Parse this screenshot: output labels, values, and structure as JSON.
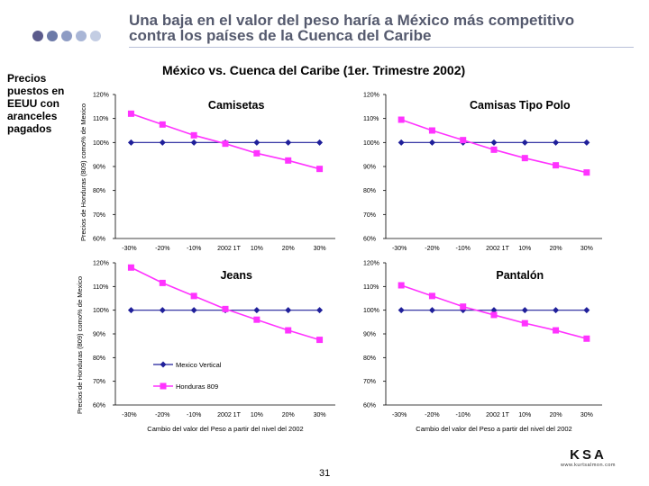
{
  "header": {
    "title_line1": "Una baja en el valor del peso haría a México más competitivo",
    "title_line2": "contra los países de la Cuenca del Caribe",
    "dot_colors": [
      "#5b5b8c",
      "#6c7aa8",
      "#8e9cc4",
      "#a9b6d6",
      "#c3cde3"
    ]
  },
  "subtitle": "México vs. Cuenca del Caribe (1er. Trimestre 2002)",
  "side_note": [
    "Precios",
    "puestos en",
    "EEUU con",
    "aranceles",
    "pagados"
  ],
  "ylabel": "Precios de Honduras (809) como% de Mexico",
  "xlabel": "Cambio del valor del Peso a partir del nivel del 2002",
  "page_number": "31",
  "logo": {
    "mark": "KSA",
    "url": "www.kurtsalmon.com"
  },
  "colors": {
    "mexico": "#1f1f9a",
    "honduras": "#ff33ff"
  },
  "legend": {
    "mexico": "Mexico Vertical",
    "honduras": "Honduras 809"
  },
  "chart_data": [
    {
      "type": "line",
      "title": "Camisetas",
      "x": [
        "-30%",
        "-20%",
        "-10%",
        "2002 1T",
        "10%",
        "20%",
        "30%"
      ],
      "y_ticks": [
        "60%",
        "70%",
        "80%",
        "90%",
        "100%",
        "110%",
        "120%"
      ],
      "ylim": [
        60,
        120
      ],
      "series": [
        {
          "name": "Mexico Vertical",
          "values": [
            100,
            100,
            100,
            100,
            100,
            100,
            100
          ]
        },
        {
          "name": "Honduras 809",
          "values": [
            112,
            107.5,
            103,
            99.5,
            95.5,
            92.5,
            89
          ]
        }
      ]
    },
    {
      "type": "line",
      "title": "Camisas Tipo Polo",
      "x": [
        "-30%",
        "-20%",
        "-10%",
        "2002 1T",
        "10%",
        "20%",
        "30%"
      ],
      "y_ticks": [
        "60%",
        "70%",
        "80%",
        "90%",
        "100%",
        "110%",
        "120%"
      ],
      "ylim": [
        60,
        120
      ],
      "series": [
        {
          "name": "Mexico Vertical",
          "values": [
            100,
            100,
            100,
            100,
            100,
            100,
            100
          ]
        },
        {
          "name": "Honduras 809",
          "values": [
            109.5,
            105,
            101,
            97,
            93.5,
            90.5,
            87.5
          ]
        }
      ]
    },
    {
      "type": "line",
      "title": "Jeans",
      "x": [
        "-30%",
        "-20%",
        "-10%",
        "2002 1T",
        "10%",
        "20%",
        "30%"
      ],
      "y_ticks": [
        "60%",
        "70%",
        "80%",
        "90%",
        "100%",
        "110%",
        "120%"
      ],
      "ylim": [
        60,
        120
      ],
      "series": [
        {
          "name": "Mexico Vertical",
          "values": [
            100,
            100,
            100,
            100,
            100,
            100,
            100
          ]
        },
        {
          "name": "Honduras 809",
          "values": [
            118,
            111.5,
            106,
            100.5,
            96,
            91.5,
            87.5
          ]
        }
      ]
    },
    {
      "type": "line",
      "title": "Pantalón",
      "x": [
        "-30%",
        "-20%",
        "-10%",
        "2002 1T",
        "10%",
        "20%",
        "30%"
      ],
      "y_ticks": [
        "60%",
        "70%",
        "80%",
        "90%",
        "100%",
        "110%",
        "120%"
      ],
      "ylim": [
        60,
        120
      ],
      "series": [
        {
          "name": "Mexico Vertical",
          "values": [
            100,
            100,
            100,
            100,
            100,
            100,
            100
          ]
        },
        {
          "name": "Honduras 809",
          "values": [
            110.5,
            106,
            101.5,
            98,
            94.5,
            91.5,
            88
          ]
        }
      ]
    }
  ]
}
